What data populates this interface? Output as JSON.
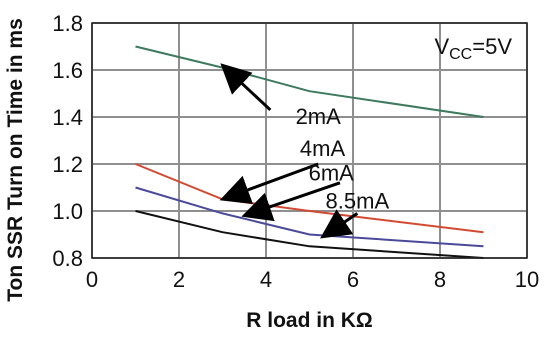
{
  "chart_data": {
    "type": "line",
    "xlabel": "R load in KΩ",
    "ylabel": "Ton SSR Turn on Time in ms",
    "xlim": [
      0,
      10
    ],
    "ylim": [
      0.8,
      1.8
    ],
    "x_ticks": [
      0,
      2,
      4,
      6,
      8,
      10
    ],
    "x_tick_labels": [
      "0",
      "2",
      "4",
      "6",
      "8",
      "10"
    ],
    "y_ticks": [
      0.8,
      1.0,
      1.2,
      1.4,
      1.6,
      1.8
    ],
    "y_tick_labels": [
      "0.8",
      "1.0",
      "1.2",
      "1.4",
      "1.6",
      "1.8"
    ],
    "grid": true,
    "condition": {
      "symbol": "V",
      "subscript": "CC",
      "value": "=5V"
    },
    "series": [
      {
        "name": "2mA",
        "color": "#3d7a5e",
        "x": [
          1,
          3,
          5,
          9
        ],
        "y": [
          1.7,
          1.61,
          1.51,
          1.4
        ]
      },
      {
        "name": "4mA",
        "color": "#d24a32",
        "x": [
          1,
          3,
          5,
          9
        ],
        "y": [
          1.2,
          1.05,
          1.0,
          0.91
        ]
      },
      {
        "name": "6mA",
        "color": "#4a4a9a",
        "x": [
          1,
          3,
          5,
          9
        ],
        "y": [
          1.1,
          0.99,
          0.9,
          0.85
        ]
      },
      {
        "name": "8.5mA",
        "color": "#111111",
        "x": [
          1,
          3,
          5,
          9
        ],
        "y": [
          1.0,
          0.91,
          0.85,
          0.8
        ]
      }
    ],
    "annotations": [
      {
        "label": "2mA",
        "text_x": 5.2,
        "text_y": 1.37,
        "arrow_from_x": 4.1,
        "arrow_from_y": 1.43,
        "arrow_to_x": 3.0,
        "arrow_to_y": 1.62
      },
      {
        "label": "4mA",
        "text_x": 5.3,
        "text_y": 1.235,
        "arrow_from_x": 5.2,
        "arrow_from_y": 1.2,
        "arrow_to_x": 3.0,
        "arrow_to_y": 1.05
      },
      {
        "label": "6mA",
        "text_x": 5.5,
        "text_y": 1.13,
        "arrow_from_x": 5.7,
        "arrow_from_y": 1.12,
        "arrow_to_x": 3.5,
        "arrow_to_y": 0.98
      },
      {
        "label": "8.5mA",
        "text_x": 6.1,
        "text_y": 1.01,
        "arrow_from_x": 6.1,
        "arrow_from_y": 0.99,
        "arrow_to_x": 5.3,
        "arrow_to_y": 0.89
      }
    ]
  }
}
